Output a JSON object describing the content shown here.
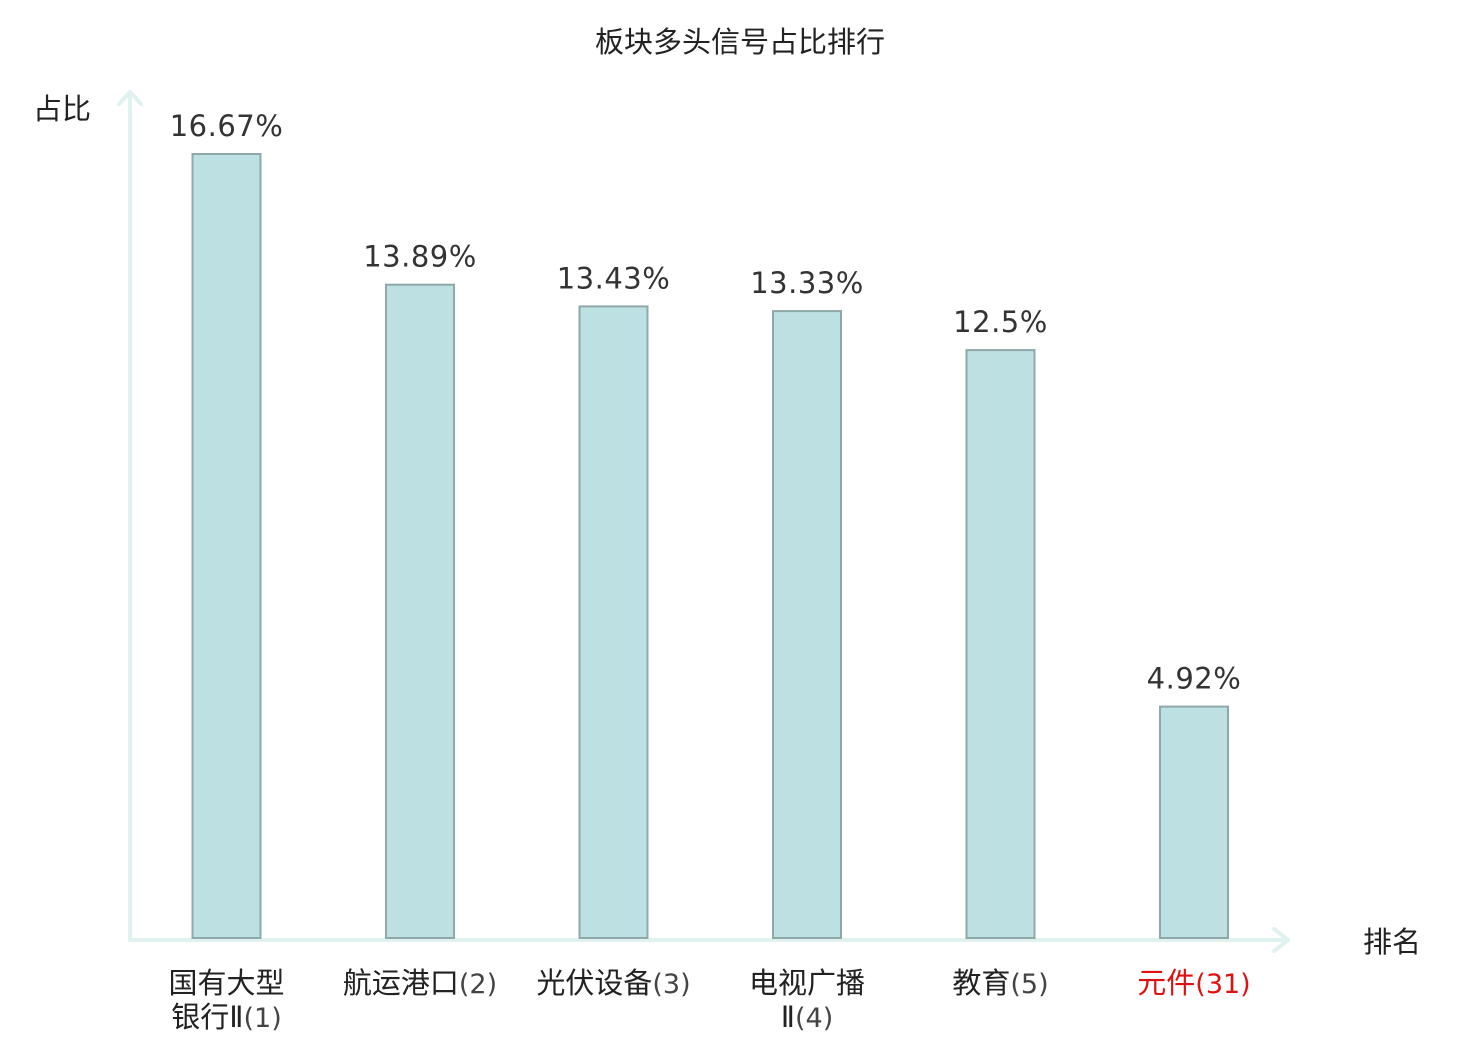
{
  "chart_data": {
    "type": "bar",
    "title": "板块多头信号占比排行",
    "ylabel": "占比",
    "xlabel": "排名",
    "ylim": [
      0,
      18
    ],
    "grid": false,
    "categories": [
      {
        "name_lines": [
          "国有大型",
          "银行Ⅱ"
        ],
        "rank": "(1)",
        "highlight": false
      },
      {
        "name_lines": [
          "航运港口"
        ],
        "rank": "(2)",
        "highlight": false
      },
      {
        "name_lines": [
          "光伏设备"
        ],
        "rank": "(3)",
        "highlight": false
      },
      {
        "name_lines": [
          "电视广播",
          "Ⅱ"
        ],
        "rank": "(4)",
        "highlight": false
      },
      {
        "name_lines": [
          "教育"
        ],
        "rank": "(5)",
        "highlight": false
      },
      {
        "name_lines": [
          "元件"
        ],
        "rank": "(31)",
        "highlight": true
      }
    ],
    "values": [
      16.67,
      13.89,
      13.43,
      13.33,
      12.5,
      4.92
    ],
    "value_labels": [
      "16.67%",
      "13.89%",
      "13.43%",
      "13.33%",
      "12.5%",
      "4.92%"
    ]
  },
  "colors": {
    "bar_fill": "#bde0e2",
    "bar_stroke": "#8ea8aa",
    "axis": "#dff2ef",
    "highlight_text": "#e01010"
  }
}
